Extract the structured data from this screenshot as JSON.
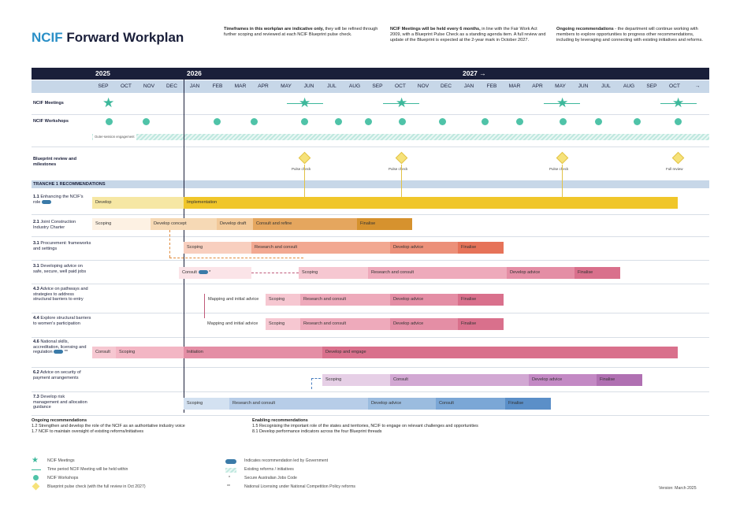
{
  "title": {
    "acronym": "NCIF",
    "rest": " Forward Workplan"
  },
  "notes": {
    "n1_bold": "Timeframes in this workplan are indicative only,",
    "n1_rest": "they will be refined through further scoping and reviewed at each NCIF Blueprint pulse check.",
    "n2_bold": "NCIF Meetings will be held every 6 months,",
    "n2_rest": "in line with the Fair Work Act 2009, with a Blueprint Pulse Check as a standing agenda item. A full review and update of the Blueprint is expected at the 2-year mark in October 2027.",
    "n3_bold": "Ongoing recommendations",
    "n3_rest": "- the department will continue working with members to explore opportunities to progress other recommendations, including by leveraging and connecting with existing initiatives and reforms."
  },
  "years": {
    "y1": "2025",
    "y2": "2026",
    "y3": "2027 →"
  },
  "months": [
    "SEP",
    "OCT",
    "NOV",
    "DEC",
    "JAN",
    "FEB",
    "MAR",
    "APR",
    "MAY",
    "JUN",
    "JUL",
    "AUG",
    "SEP",
    "OCT",
    "NOV",
    "DEC",
    "JAN",
    "FEB",
    "MAR",
    "APR",
    "MAY",
    "JUN",
    "JUL",
    "AUG",
    "SEP",
    "OCT",
    "→"
  ],
  "rows": {
    "meetings": "NCIF Meetings",
    "workshops": "NCIF Workshops",
    "outreach": "Outer-session engagement",
    "blueprint": "Blueprint review and milestones",
    "tranche": "TRANCHE 1 RECOMMENDATIONS"
  },
  "milestones": {
    "m1": "Pulse check",
    "m2": "Pulse check",
    "m3": "Pulse check",
    "m4": "Full review"
  },
  "recs": [
    {
      "num": "1.1",
      "text": "Enhancing the NCIF's role"
    },
    {
      "num": "2.1",
      "text": "Joint Construction Industry Charter"
    },
    {
      "num": "3.1",
      "text": "Procurement: frameworks and settings"
    },
    {
      "num": "3.1",
      "text": "Developing advice on safe, secure, well paid jobs"
    },
    {
      "num": "4.3",
      "text": "Advice on pathways and strategies to address structural barriers to entry"
    },
    {
      "num": "4.4",
      "text": "Explore structural barriers to women's participation"
    },
    {
      "num": "4.6",
      "text": "National skills, accreditation, licensing and regulation"
    },
    {
      "num": "6.2",
      "text": "Advice on security of payment arrangements"
    },
    {
      "num": "7.3",
      "text": "Develop risk management and allocation guidance"
    }
  ],
  "bars": {
    "r1a": "Develop",
    "r1b": "Implementation",
    "r2a": "Scoping",
    "r2b": "Develop concept",
    "r2c": "Develop draft",
    "r2d": "Consult and refine",
    "r2e": "Finalise",
    "r3a": "Scoping",
    "r3b": "Research and consult",
    "r3c": "Develop advice",
    "r3d": "Finalise",
    "r4a": "Consult",
    "r4b": "Scoping",
    "r4c": "Research and consult",
    "r4d": "Develop advice",
    "r4e": "Finalise",
    "r5a": "Mapping and initial advice",
    "r5b": "Scoping",
    "r5c": "Research and consult",
    "r5d": "Develop advice",
    "r5e": "Finalise",
    "r6a": "Mapping and initial advice",
    "r6b": "Scoping",
    "r6c": "Research and consult",
    "r6d": "Develop advice",
    "r6e": "Finalise",
    "r7a": "Consult",
    "r7b": "Scoping",
    "r7c": "Initiation",
    "r7d": "Develop and engage",
    "r8a": "Scoping",
    "r8b": "Consult",
    "r8c": "Develop advice",
    "r8d": "Finalise",
    "r9a": "Scoping",
    "r9b": "Research and consult",
    "r9c": "Develop advice",
    "r9d": "Consult",
    "r9e": "Finalise"
  },
  "ongoing": {
    "title": "Ongoing recommendations",
    "l1": "1.2 Strengthen and develop the role of the NCIF as an authoritative industry voice",
    "l2": "1.7 NCIF to maintain oversight of existing reforms/initiatives",
    "title2": "Enabling recommendations",
    "l3": "1.5 Recognising the important role of the states and territories, NCIF to engage on relevant challenges and opportunities",
    "l4": "8.1 Develop performance indicators across the four Blueprint threads"
  },
  "legend": {
    "a": "NCIF Meetings",
    "b": "Time period NCIF Meeting will be held within",
    "c": "NCIF Workshops",
    "d": "Blueprint pulse check (with the full review in Oct 2027)",
    "e": "Indicates recommendation led by Government",
    "f": "Existing reforms / initiatives",
    "g": "Secure Australian Jobs Code",
    "h": "National Licensing under National Competition Policy reforms"
  },
  "marks": {
    "star1": "*",
    "star2": "**",
    "star3": "*",
    "star4": "**"
  },
  "version": "Version: March 2025"
}
